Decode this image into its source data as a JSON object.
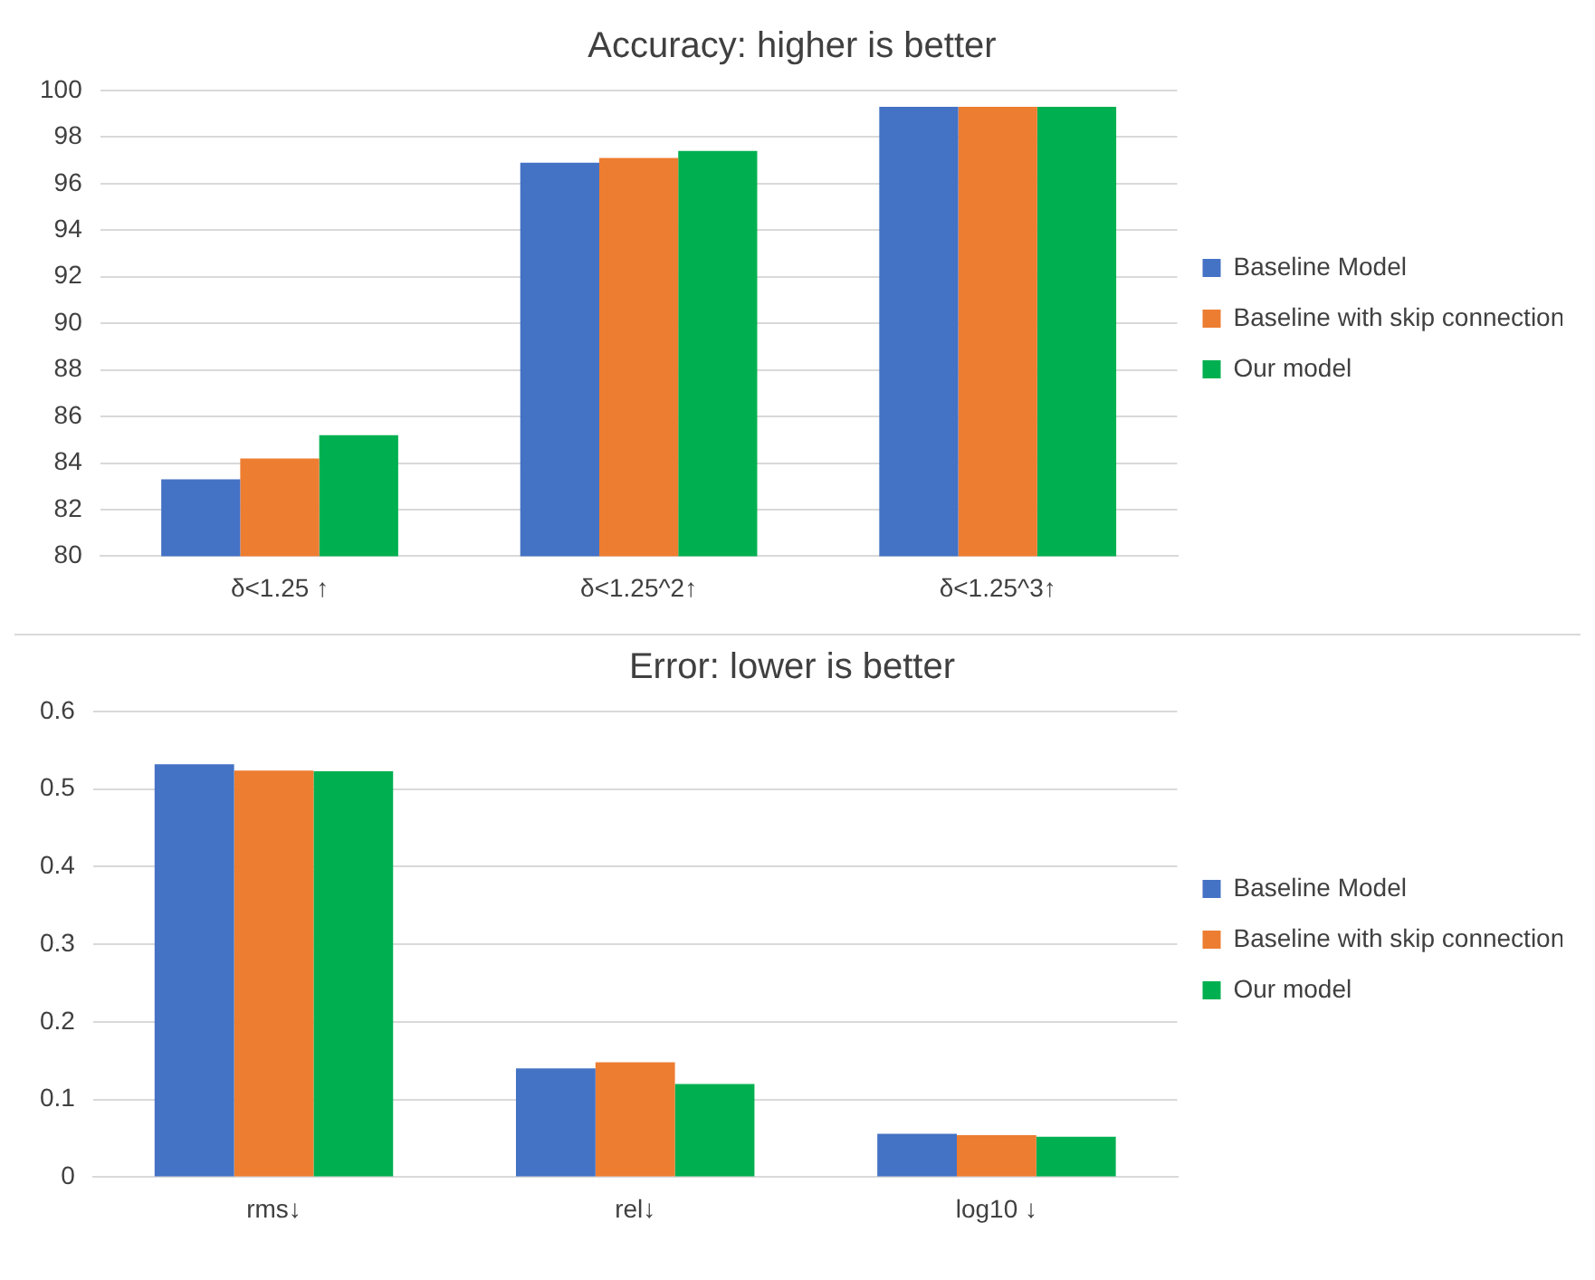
{
  "chart_data": [
    {
      "type": "bar",
      "title": "Accuracy: higher is better",
      "categories": [
        "δ<1.25 ↑",
        "δ<1.25^2↑",
        "δ<1.25^3↑"
      ],
      "series": [
        {
          "name": "Baseline Model",
          "color": "#4472c4",
          "values": [
            83.3,
            96.9,
            99.3
          ]
        },
        {
          "name": "Baseline with skip connection",
          "color": "#ed7d31",
          "values": [
            84.2,
            97.1,
            99.3
          ]
        },
        {
          "name": "Our model",
          "color": "#00b050",
          "values": [
            85.2,
            97.4,
            99.3
          ]
        }
      ],
      "ylim": [
        80,
        100
      ],
      "yticks": [
        80,
        82,
        84,
        86,
        88,
        90,
        92,
        94,
        96,
        98,
        100
      ],
      "grid": "y",
      "legend": "right"
    },
    {
      "type": "bar",
      "title": "Error: lower is better",
      "categories": [
        "rms↓",
        "rel↓",
        "log10 ↓"
      ],
      "series": [
        {
          "name": "Baseline Model",
          "color": "#4472c4",
          "values": [
            0.532,
            0.14,
            0.056
          ]
        },
        {
          "name": "Baseline with skip connection",
          "color": "#ed7d31",
          "values": [
            0.524,
            0.148,
            0.054
          ]
        },
        {
          "name": "Our model",
          "color": "#00b050",
          "values": [
            0.523,
            0.12,
            0.052
          ]
        }
      ],
      "ylim": [
        0,
        0.6
      ],
      "yticks": [
        0,
        0.1,
        0.2,
        0.3,
        0.4,
        0.5,
        0.6
      ],
      "grid": "y",
      "legend": "right"
    }
  ]
}
